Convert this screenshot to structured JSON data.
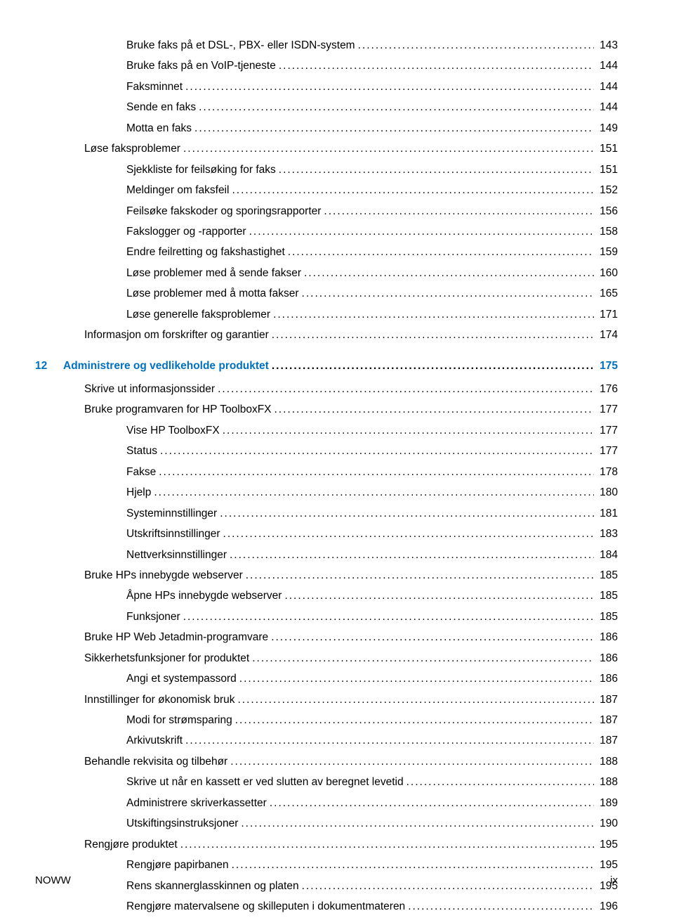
{
  "entries": [
    {
      "level": 2,
      "text": "Bruke faks på et DSL-, PBX- eller ISDN-system",
      "page": "143"
    },
    {
      "level": 2,
      "text": "Bruke faks på en VoIP-tjeneste",
      "page": "144"
    },
    {
      "level": 2,
      "text": "Faksminnet",
      "page": "144"
    },
    {
      "level": 2,
      "text": "Sende en faks",
      "page": "144"
    },
    {
      "level": 2,
      "text": "Motta en faks",
      "page": "149"
    },
    {
      "level": 1,
      "text": "Løse faksproblemer",
      "page": "151"
    },
    {
      "level": 2,
      "text": "Sjekkliste for feilsøking for faks",
      "page": "151"
    },
    {
      "level": 2,
      "text": "Meldinger om faksfeil",
      "page": "152"
    },
    {
      "level": 2,
      "text": "Feilsøke fakskoder og sporingsrapporter",
      "page": "156"
    },
    {
      "level": 2,
      "text": "Fakslogger og -rapporter",
      "page": "158"
    },
    {
      "level": 2,
      "text": "Endre feilretting og fakshastighet",
      "page": "159"
    },
    {
      "level": 2,
      "text": "Løse problemer med å sende fakser",
      "page": "160"
    },
    {
      "level": 2,
      "text": "Løse problemer med å motta fakser",
      "page": "165"
    },
    {
      "level": 2,
      "text": "Løse generelle faksproblemer",
      "page": "171"
    },
    {
      "level": 1,
      "text": "Informasjon om forskrifter og garantier",
      "page": "174"
    }
  ],
  "chapter": {
    "num": "12",
    "title": "Administrere og vedlikeholde produktet",
    "page": "175"
  },
  "entries2": [
    {
      "level": 1,
      "text": "Skrive ut informasjonssider",
      "page": "176"
    },
    {
      "level": 1,
      "text": "Bruke programvaren for HP ToolboxFX",
      "page": "177"
    },
    {
      "level": 2,
      "text": "Vise HP ToolboxFX",
      "page": "177"
    },
    {
      "level": 2,
      "text": "Status",
      "page": "177"
    },
    {
      "level": 2,
      "text": "Fakse",
      "page": "178"
    },
    {
      "level": 2,
      "text": "Hjelp",
      "page": "180"
    },
    {
      "level": 2,
      "text": "Systeminnstillinger",
      "page": "181"
    },
    {
      "level": 2,
      "text": "Utskriftsinnstillinger",
      "page": "183"
    },
    {
      "level": 2,
      "text": "Nettverksinnstillinger",
      "page": "184"
    },
    {
      "level": 1,
      "text": "Bruke HPs innebygde webserver",
      "page": "185"
    },
    {
      "level": 2,
      "text": "Åpne HPs innebygde webserver",
      "page": "185"
    },
    {
      "level": 2,
      "text": "Funksjoner",
      "page": "185"
    },
    {
      "level": 1,
      "text": "Bruke HP Web Jetadmin-programvare",
      "page": "186"
    },
    {
      "level": 1,
      "text": "Sikkerhetsfunksjoner for produktet",
      "page": "186"
    },
    {
      "level": 2,
      "text": "Angi et systempassord",
      "page": "186"
    },
    {
      "level": 1,
      "text": "Innstillinger for økonomisk bruk",
      "page": "187"
    },
    {
      "level": 2,
      "text": "Modi for strømsparing",
      "page": "187"
    },
    {
      "level": 2,
      "text": "Arkivutskrift",
      "page": "187"
    },
    {
      "level": 1,
      "text": "Behandle rekvisita og tilbehør",
      "page": "188"
    },
    {
      "level": 2,
      "text": "Skrive ut når en kassett er ved slutten av beregnet levetid",
      "page": "188"
    },
    {
      "level": 2,
      "text": "Administrere skriverkassetter",
      "page": "189"
    },
    {
      "level": 2,
      "text": "Utskiftingsinstruksjoner",
      "page": "190"
    },
    {
      "level": 1,
      "text": "Rengjøre produktet",
      "page": "195"
    },
    {
      "level": 2,
      "text": "Rengjøre papirbanen",
      "page": "195"
    },
    {
      "level": 2,
      "text": "Rens skannerglasskinnen og platen",
      "page": "195"
    },
    {
      "level": 2,
      "text": "Rengjøre matervalsene og skilleputen i dokumentmateren",
      "page": "196"
    }
  ],
  "footer": {
    "left": "NOWW",
    "right": "ix"
  }
}
